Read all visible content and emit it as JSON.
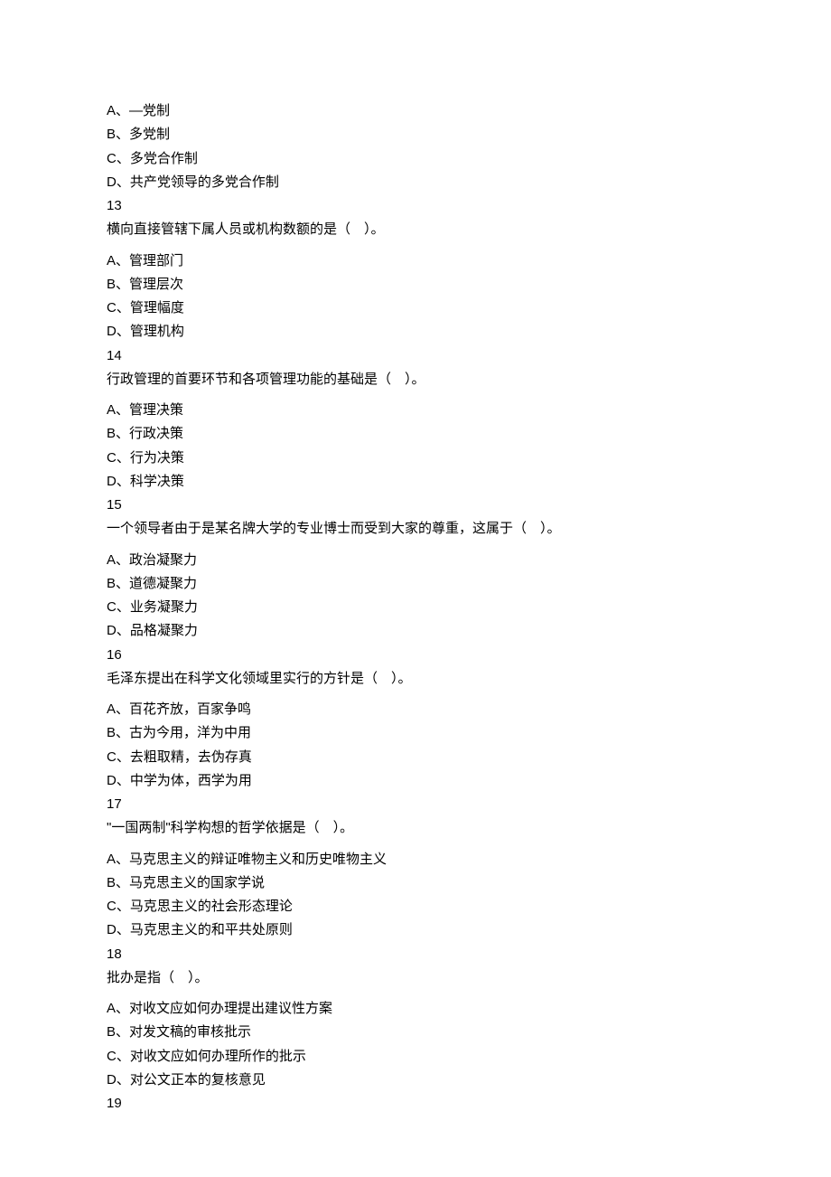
{
  "q12_cont": {
    "options": [
      {
        "prefix": "A、",
        "text": "—党制"
      },
      {
        "prefix": "B、",
        "text": "多党制"
      },
      {
        "prefix": "C、",
        "text": "多党合作制"
      },
      {
        "prefix": "D、",
        "text": "共产党领导的多党合作制"
      }
    ]
  },
  "q13": {
    "num": "13",
    "stem": "横向直接管辖下属人员或机构数额的是（　）。",
    "options": [
      {
        "prefix": "A、",
        "text": "管理部门"
      },
      {
        "prefix": "B、",
        "text": "管理层次"
      },
      {
        "prefix": "C、",
        "text": "管理幅度"
      },
      {
        "prefix": "D、",
        "text": "管理机构"
      }
    ]
  },
  "q14": {
    "num": "14",
    "stem": "行政管理的首要环节和各项管理功能的基础是（　）。",
    "options": [
      {
        "prefix": "A、",
        "text": "管理决策"
      },
      {
        "prefix": "B、",
        "text": "行政决策"
      },
      {
        "prefix": "C、",
        "text": "行为决策"
      },
      {
        "prefix": "D、",
        "text": "科学决策"
      }
    ]
  },
  "q15": {
    "num": "15",
    "stem": "一个领导者由于是某名牌大学的专业博士而受到大家的尊重，这属于（　）。",
    "options": [
      {
        "prefix": "A、",
        "text": "政治凝聚力"
      },
      {
        "prefix": "B、",
        "text": "道德凝聚力"
      },
      {
        "prefix": "C、",
        "text": "业务凝聚力"
      },
      {
        "prefix": "D、",
        "text": "品格凝聚力"
      }
    ]
  },
  "q16": {
    "num": "16",
    "stem": "毛泽东提出在科学文化领域里实行的方针是（　）。",
    "options": [
      {
        "prefix": "A、",
        "text": "百花齐放，百家争鸣"
      },
      {
        "prefix": "B、",
        "text": "古为今用，洋为中用"
      },
      {
        "prefix": "C、",
        "text": "去粗取精，去伪存真"
      },
      {
        "prefix": "D、",
        "text": "中学为体，西学为用"
      }
    ]
  },
  "q17": {
    "num": "17",
    "stem": "\"一国两制\"科学构想的哲学依据是（　）。",
    "options": [
      {
        "prefix": "A、",
        "text": "马克思主义的辩证唯物主义和历史唯物主义"
      },
      {
        "prefix": "B、",
        "text": "马克思主义的国家学说"
      },
      {
        "prefix": "C、",
        "text": "马克思主义的社会形态理论"
      },
      {
        "prefix": "D、",
        "text": "马克思主义的和平共处原则"
      }
    ]
  },
  "q18": {
    "num": "18",
    "stem": "批办是指（　）。",
    "options": [
      {
        "prefix": "A、",
        "text": "对收文应如何办理提出建议性方案"
      },
      {
        "prefix": "B、",
        "text": "对发文稿的审核批示"
      },
      {
        "prefix": "C、",
        "text": "对收文应如何办理所作的批示"
      },
      {
        "prefix": "D、",
        "text": "对公文正本的复核意见"
      }
    ]
  },
  "q19": {
    "num": "19"
  }
}
